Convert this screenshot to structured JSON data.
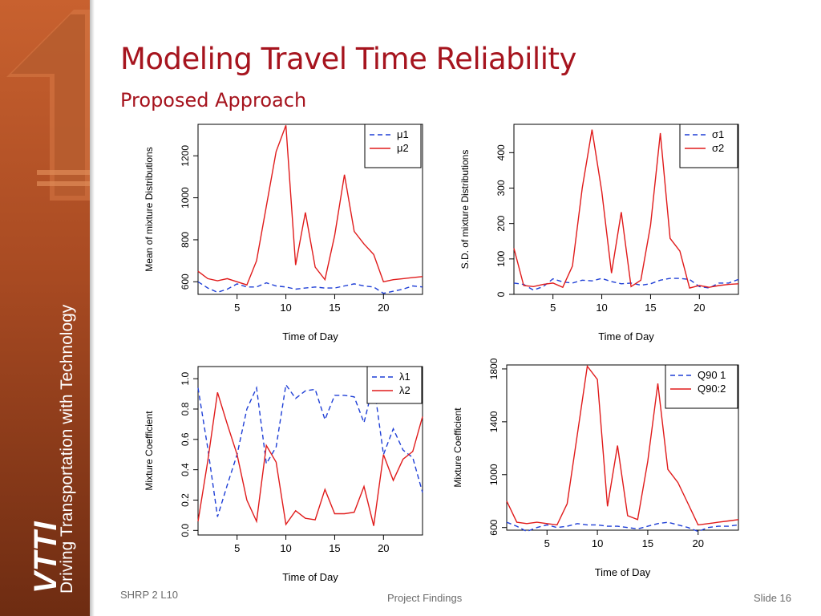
{
  "slide": {
    "title": "Modeling Travel Time Reliability",
    "subtitle": "Proposed Approach",
    "brand": "VTTI",
    "tagline": "Driving Transportation with Technology",
    "footer_left": "SHRP 2 L10",
    "footer_center": "Project Findings",
    "footer_right": "Slide 16"
  },
  "colors": {
    "title": "#a6141e",
    "sidebar": "#a84a22",
    "series1": "#1f3fd6",
    "series2": "#e01b1b"
  },
  "chart_data": [
    {
      "type": "line",
      "xlabel": "Time of Day",
      "ylabel": "Mean of mixture Distributions",
      "xlim": [
        1,
        24
      ],
      "xticks": [
        5,
        10,
        15,
        20
      ],
      "ylim": [
        540,
        1350
      ],
      "yticks": [
        600,
        800,
        1000,
        1200
      ],
      "legend_position": "top-right",
      "series": [
        {
          "name": "μ1",
          "style": "dashed",
          "color": "#1f3fd6",
          "x": [
            1,
            2,
            3,
            4,
            5,
            6,
            7,
            8,
            9,
            10,
            11,
            12,
            13,
            14,
            15,
            16,
            17,
            18,
            19,
            20,
            21,
            22,
            23,
            24
          ],
          "values": [
            600,
            570,
            550,
            565,
            590,
            575,
            575,
            595,
            580,
            575,
            565,
            570,
            575,
            570,
            570,
            580,
            590,
            580,
            575,
            545,
            555,
            565,
            580,
            575
          ]
        },
        {
          "name": "μ2",
          "style": "solid",
          "color": "#e01b1b",
          "x": [
            1,
            2,
            3,
            4,
            5,
            6,
            7,
            8,
            9,
            10,
            11,
            12,
            13,
            14,
            15,
            16,
            17,
            18,
            19,
            20,
            21,
            22,
            23,
            24
          ],
          "values": [
            650,
            615,
            605,
            615,
            600,
            585,
            700,
            960,
            1220,
            1345,
            680,
            930,
            670,
            610,
            820,
            1110,
            840,
            780,
            730,
            600,
            610,
            615,
            620,
            625
          ]
        }
      ]
    },
    {
      "type": "line",
      "xlabel": "Time of Day",
      "ylabel": "S.D. of mixture Distributions",
      "xlim": [
        1,
        24
      ],
      "xticks": [
        5,
        10,
        15,
        20
      ],
      "ylim": [
        0,
        480
      ],
      "yticks": [
        0,
        100,
        200,
        300,
        400
      ],
      "legend_position": "top-right",
      "series": [
        {
          "name": "σ1",
          "style": "dashed",
          "color": "#1f3fd6",
          "x": [
            1,
            2,
            3,
            4,
            5,
            6,
            7,
            8,
            9,
            10,
            11,
            12,
            13,
            14,
            15,
            16,
            17,
            18,
            19,
            20,
            21,
            22,
            23,
            24
          ],
          "values": [
            32,
            28,
            12,
            22,
            44,
            35,
            32,
            40,
            38,
            45,
            36,
            30,
            32,
            26,
            30,
            40,
            45,
            45,
            42,
            22,
            18,
            32,
            32,
            42
          ]
        },
        {
          "name": "σ2",
          "style": "solid",
          "color": "#e01b1b",
          "x": [
            1,
            2,
            3,
            4,
            5,
            6,
            7,
            8,
            9,
            10,
            11,
            12,
            13,
            14,
            15,
            16,
            17,
            18,
            19,
            20,
            21,
            22,
            23,
            24
          ],
          "values": [
            130,
            25,
            22,
            28,
            32,
            20,
            80,
            300,
            465,
            290,
            60,
            232,
            22,
            40,
            195,
            455,
            158,
            122,
            18,
            25,
            20,
            25,
            28,
            30
          ]
        }
      ]
    },
    {
      "type": "line",
      "xlabel": "Time of Day",
      "ylabel": "Mixture Coefficient",
      "xlim": [
        1,
        24
      ],
      "xticks": [
        5,
        10,
        15,
        20
      ],
      "ylim": [
        -0.03,
        1.08
      ],
      "yticks": [
        0.0,
        0.2,
        0.4,
        0.6,
        0.8,
        1.0
      ],
      "ytick_labels": [
        "0.0",
        "0.2",
        "0.4",
        "0.6",
        "0.8",
        "1.0"
      ],
      "legend_position": "top-right",
      "series": [
        {
          "name": "λ1",
          "style": "dashed",
          "color": "#1f3fd6",
          "x": [
            1,
            2,
            3,
            4,
            5,
            6,
            7,
            8,
            9,
            10,
            11,
            12,
            13,
            14,
            15,
            16,
            17,
            18,
            19,
            20,
            21,
            22,
            23,
            24
          ],
          "values": [
            0.94,
            0.54,
            0.09,
            0.3,
            0.5,
            0.8,
            0.94,
            0.44,
            0.55,
            0.96,
            0.87,
            0.92,
            0.93,
            0.73,
            0.89,
            0.89,
            0.88,
            0.71,
            0.97,
            0.5,
            0.67,
            0.53,
            0.48,
            0.25
          ]
        },
        {
          "name": "λ2",
          "style": "solid",
          "color": "#e01b1b",
          "x": [
            1,
            2,
            3,
            4,
            5,
            6,
            7,
            8,
            9,
            10,
            11,
            12,
            13,
            14,
            15,
            16,
            17,
            18,
            19,
            20,
            21,
            22,
            23,
            24
          ],
          "values": [
            0.06,
            0.46,
            0.91,
            0.7,
            0.5,
            0.2,
            0.06,
            0.56,
            0.45,
            0.04,
            0.13,
            0.08,
            0.07,
            0.27,
            0.11,
            0.11,
            0.12,
            0.29,
            0.03,
            0.5,
            0.33,
            0.47,
            0.52,
            0.75
          ]
        }
      ]
    },
    {
      "type": "line",
      "xlabel": "Time of Day",
      "ylabel": "Mixture Coefficient",
      "xlim": [
        1,
        24
      ],
      "xticks": [
        5,
        10,
        15,
        20
      ],
      "ylim": [
        580,
        1830
      ],
      "yticks": [
        600,
        1000,
        1400,
        1800
      ],
      "legend_position": "top-right",
      "series": [
        {
          "name": "Q90 1",
          "style": "dashed",
          "color": "#1f3fd6",
          "x": [
            1,
            2,
            3,
            4,
            5,
            6,
            7,
            8,
            9,
            10,
            11,
            12,
            13,
            14,
            15,
            16,
            17,
            18,
            19,
            20,
            21,
            22,
            23,
            24
          ],
          "values": [
            640,
            610,
            570,
            600,
            620,
            600,
            610,
            630,
            620,
            620,
            610,
            610,
            600,
            590,
            610,
            630,
            640,
            620,
            600,
            570,
            600,
            610,
            610,
            620
          ]
        },
        {
          "name": "Q90:2",
          "style": "solid",
          "color": "#e01b1b",
          "x": [
            1,
            2,
            3,
            4,
            5,
            6,
            7,
            8,
            9,
            10,
            11,
            12,
            13,
            14,
            15,
            16,
            17,
            18,
            19,
            20,
            21,
            22,
            23,
            24
          ],
          "values": [
            800,
            640,
            630,
            640,
            630,
            620,
            780,
            1300,
            1820,
            1720,
            760,
            1220,
            690,
            660,
            1100,
            1690,
            1040,
            940,
            780,
            620,
            630,
            640,
            650,
            660
          ]
        }
      ]
    }
  ]
}
